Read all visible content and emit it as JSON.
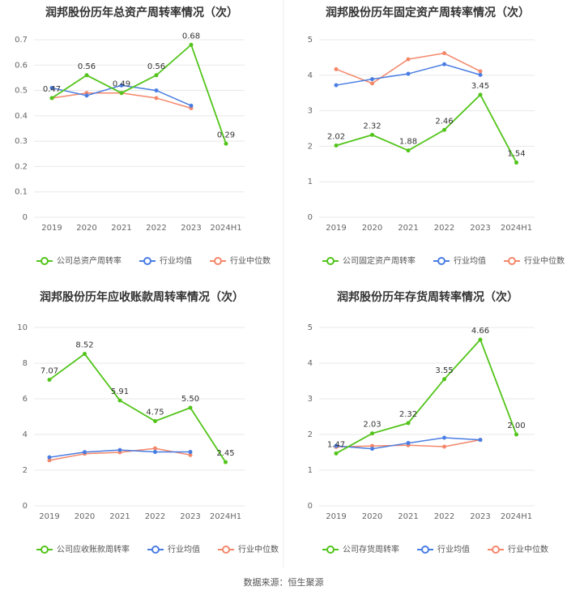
{
  "source_label": "数据来源：恒生聚源",
  "colors": {
    "company": "#52c41a",
    "avg": "#4a7de2",
    "median": "#f4876a",
    "grid": "#e8e8e8",
    "axis_text": "#666666",
    "title": "#333333"
  },
  "chart_data": [
    {
      "type": "line",
      "title": "润邦股份历年总资产周转率情况（次）",
      "categories": [
        "2019",
        "2020",
        "2021",
        "2022",
        "2023",
        "2024H1"
      ],
      "ylim": [
        0,
        0.7
      ],
      "yticks": [
        "0",
        "0.1",
        "0.2",
        "0.3",
        "0.4",
        "0.5",
        "0.6",
        "0.7"
      ],
      "series": [
        {
          "name": "公司总资产周转率",
          "color": "#52c41a",
          "values": [
            0.47,
            0.56,
            0.49,
            0.56,
            0.68,
            0.29
          ],
          "labels": [
            "0.47",
            "0.56",
            "0.49",
            "0.56",
            "0.68",
            "0.29"
          ]
        },
        {
          "name": "行业均值",
          "color": "#4a7de2",
          "values": [
            0.51,
            0.48,
            0.52,
            0.5,
            0.44,
            null
          ]
        },
        {
          "name": "行业中位数",
          "color": "#f4876a",
          "values": [
            0.47,
            0.49,
            0.49,
            0.47,
            0.43,
            null
          ]
        }
      ]
    },
    {
      "type": "line",
      "title": "润邦股份历年固定资产周转率情况（次）",
      "categories": [
        "2019",
        "2020",
        "2021",
        "2022",
        "2023",
        "2024H1"
      ],
      "ylim": [
        0,
        5
      ],
      "yticks": [
        "0",
        "1",
        "2",
        "3",
        "4",
        "5"
      ],
      "series": [
        {
          "name": "公司固定资产周转率",
          "color": "#52c41a",
          "values": [
            2.02,
            2.32,
            1.88,
            2.46,
            3.45,
            1.54
          ],
          "labels": [
            "2.02",
            "2.32",
            "1.88",
            "2.46",
            "3.45",
            "1.54"
          ]
        },
        {
          "name": "行业均值",
          "color": "#4a7de2",
          "values": [
            3.72,
            3.89,
            4.04,
            4.31,
            4.01,
            null
          ]
        },
        {
          "name": "行业中位数",
          "color": "#f4876a",
          "values": [
            4.17,
            3.77,
            4.45,
            4.62,
            4.11,
            null
          ]
        }
      ]
    },
    {
      "type": "line",
      "title": "润邦股份历年应收账款周转率情况（次）",
      "categories": [
        "2019",
        "2020",
        "2021",
        "2022",
        "2023",
        "2024H1"
      ],
      "ylim": [
        0,
        10
      ],
      "yticks": [
        "0",
        "2",
        "4",
        "6",
        "8",
        "10"
      ],
      "series": [
        {
          "name": "公司应收账款周转率",
          "color": "#52c41a",
          "values": [
            7.07,
            8.52,
            5.91,
            4.75,
            5.5,
            2.45
          ],
          "labels": [
            "7.07",
            "8.52",
            "5.91",
            "4.75",
            "5.50",
            "2.45"
          ]
        },
        {
          "name": "行业均值",
          "color": "#4a7de2",
          "values": [
            2.72,
            3.01,
            3.13,
            3.02,
            3.02,
            null
          ]
        },
        {
          "name": "行业中位数",
          "color": "#f4876a",
          "values": [
            2.55,
            2.92,
            3.0,
            3.22,
            2.85,
            null
          ]
        }
      ]
    },
    {
      "type": "line",
      "title": "润邦股份历年存货周转率情况（次）",
      "categories": [
        "2019",
        "2020",
        "2021",
        "2022",
        "2023",
        "2024H1"
      ],
      "ylim": [
        0,
        5
      ],
      "yticks": [
        "0",
        "1",
        "2",
        "3",
        "4",
        "5"
      ],
      "series": [
        {
          "name": "公司存货周转率",
          "color": "#52c41a",
          "values": [
            1.47,
            2.03,
            2.32,
            3.55,
            4.66,
            2.0
          ],
          "labels": [
            "1.47",
            "2.03",
            "2.32",
            "3.55",
            "4.66",
            "2.00"
          ]
        },
        {
          "name": "行业均值",
          "color": "#4a7de2",
          "values": [
            1.68,
            1.6,
            1.76,
            1.91,
            1.85,
            null
          ]
        },
        {
          "name": "行业中位数",
          "color": "#f4876a",
          "values": [
            1.65,
            1.68,
            1.7,
            1.66,
            1.85,
            null
          ]
        }
      ]
    }
  ]
}
